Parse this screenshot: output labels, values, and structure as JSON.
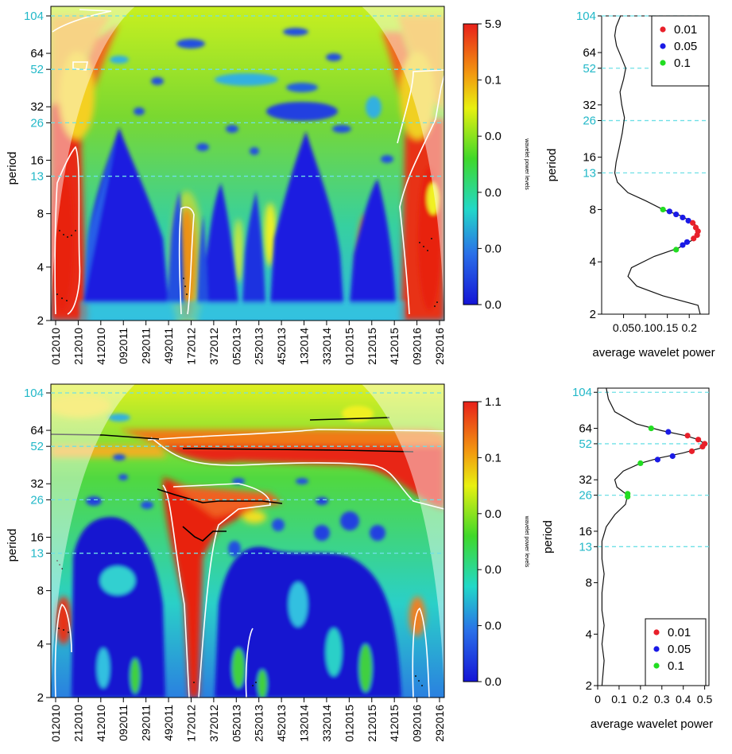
{
  "chart_data": [
    {
      "type": "heatmap",
      "panel": "top-spectrum",
      "ylabel": "period",
      "y_ticks": [
        "2",
        "4",
        "8",
        "16",
        "32",
        "64"
      ],
      "y_ticks_highlight": [
        "13",
        "26",
        "52",
        "104"
      ],
      "x_ticks": [
        "012010",
        "212010",
        "412010",
        "092011",
        "292011",
        "492011",
        "172012",
        "372012",
        "052013",
        "252013",
        "452013",
        "132014",
        "332014",
        "012015",
        "212015",
        "412015",
        "092016",
        "292016"
      ],
      "colorbar": {
        "title": "wavelet power levels",
        "labels": [
          "5.9",
          "0.1",
          "0.0",
          "0.0",
          "0.0",
          "0.0"
        ]
      }
    },
    {
      "type": "line",
      "panel": "top-average",
      "xlabel": "average wavelet power",
      "ylabel": "period",
      "x_ticks": [
        "0.05",
        "0.10",
        "0.15",
        "0.2"
      ],
      "y_ticks": [
        "2",
        "4",
        "8",
        "16",
        "32",
        "64"
      ],
      "y_ticks_highlight": [
        "13",
        "26",
        "52",
        "104"
      ],
      "legend": {
        "position": "top-right",
        "entries": [
          {
            "label": "0.01",
            "color": "#e8202a"
          },
          {
            "label": "0.05",
            "color": "#1a1ae6"
          },
          {
            "label": "0.1",
            "color": "#22dd22"
          }
        ]
      },
      "curve": [
        [
          0.043,
          104
        ],
        [
          0.033,
          90
        ],
        [
          0.03,
          80
        ],
        [
          0.034,
          70
        ],
        [
          0.045,
          60
        ],
        [
          0.055,
          52
        ],
        [
          0.05,
          45
        ],
        [
          0.042,
          38
        ],
        [
          0.046,
          32
        ],
        [
          0.052,
          27
        ],
        [
          0.047,
          22
        ],
        [
          0.04,
          18
        ],
        [
          0.033,
          15
        ],
        [
          0.03,
          13
        ],
        [
          0.036,
          11.5
        ],
        [
          0.06,
          10
        ],
        [
          0.1,
          9
        ],
        [
          0.14,
          8
        ],
        [
          0.185,
          7.3
        ],
        [
          0.215,
          6.5
        ],
        [
          0.22,
          5.9
        ],
        [
          0.205,
          5.3
        ],
        [
          0.175,
          4.8
        ],
        [
          0.12,
          4.3
        ],
        [
          0.068,
          3.7
        ],
        [
          0.06,
          3.3
        ],
        [
          0.08,
          2.9
        ],
        [
          0.14,
          2.55
        ],
        [
          0.22,
          2.25
        ],
        [
          0.225,
          2.0
        ]
      ],
      "significant_points": [
        {
          "level": "0.1",
          "color": "#22dd22",
          "points": [
            [
              0.14,
              8.0
            ],
            [
              0.17,
              4.7
            ]
          ]
        },
        {
          "level": "0.05",
          "color": "#1a1ae6",
          "points": [
            [
              0.155,
              7.8
            ],
            [
              0.17,
              7.5
            ],
            [
              0.185,
              7.2
            ],
            [
              0.198,
              6.9
            ],
            [
              0.185,
              5.0
            ],
            [
              0.195,
              5.2
            ]
          ]
        },
        {
          "level": "0.01",
          "color": "#e8202a",
          "points": [
            [
              0.208,
              6.7
            ],
            [
              0.215,
              6.3
            ],
            [
              0.22,
              6.0
            ],
            [
              0.218,
              5.7
            ],
            [
              0.21,
              5.45
            ]
          ]
        }
      ]
    },
    {
      "type": "heatmap",
      "panel": "bottom-spectrum",
      "ylabel": "period",
      "y_ticks": [
        "2",
        "4",
        "8",
        "16",
        "32",
        "64"
      ],
      "y_ticks_highlight": [
        "13",
        "26",
        "52",
        "104"
      ],
      "x_ticks": [
        "012010",
        "212010",
        "412010",
        "092011",
        "292011",
        "492011",
        "172012",
        "372012",
        "052013",
        "252013",
        "452013",
        "132014",
        "332014",
        "012015",
        "212015",
        "412015",
        "092016",
        "292016"
      ],
      "colorbar": {
        "title": "wavelet power levels",
        "labels": [
          "1.1",
          "0.1",
          "0.0",
          "0.0",
          "0.0",
          "0.0"
        ]
      }
    },
    {
      "type": "line",
      "panel": "bottom-average",
      "xlabel": "average wavelet power",
      "ylabel": "period",
      "x_ticks": [
        "0",
        "0.1",
        "0.2",
        "0.3",
        "0.4",
        "0.5"
      ],
      "y_ticks": [
        "2",
        "4",
        "8",
        "16",
        "32",
        "64"
      ],
      "y_ticks_highlight": [
        "13",
        "26",
        "52",
        "104"
      ],
      "legend": {
        "position": "bottom-right",
        "entries": [
          {
            "label": "0.01",
            "color": "#e8202a"
          },
          {
            "label": "0.05",
            "color": "#1a1ae6"
          },
          {
            "label": "0.1",
            "color": "#22dd22"
          }
        ]
      },
      "curve": [
        [
          0.04,
          110
        ],
        [
          0.05,
          95
        ],
        [
          0.08,
          80
        ],
        [
          0.18,
          68
        ],
        [
          0.3,
          62
        ],
        [
          0.41,
          58
        ],
        [
          0.47,
          55
        ],
        [
          0.5,
          52
        ],
        [
          0.48,
          49
        ],
        [
          0.4,
          46
        ],
        [
          0.29,
          43
        ],
        [
          0.2,
          40
        ],
        [
          0.12,
          36
        ],
        [
          0.08,
          32
        ],
        [
          0.09,
          29
        ],
        [
          0.14,
          26
        ],
        [
          0.13,
          23
        ],
        [
          0.08,
          20
        ],
        [
          0.04,
          17
        ],
        [
          0.02,
          14
        ],
        [
          0.02,
          11
        ],
        [
          0.03,
          9
        ],
        [
          0.02,
          7
        ],
        [
          0.02,
          5.5
        ],
        [
          0.03,
          4.5
        ],
        [
          0.02,
          3.5
        ],
        [
          0.03,
          2.8
        ],
        [
          0.02,
          2.0
        ]
      ],
      "significant_points": [
        {
          "level": "0.1",
          "color": "#22dd22",
          "points": [
            [
              0.25,
              64
            ],
            [
              0.2,
              40
            ],
            [
              0.14,
              26.5
            ],
            [
              0.14,
              25.5
            ]
          ]
        },
        {
          "level": "0.05",
          "color": "#1a1ae6",
          "points": [
            [
              0.33,
              61
            ],
            [
              0.28,
              42
            ],
            [
              0.35,
              44
            ]
          ]
        },
        {
          "level": "0.01",
          "color": "#e8202a",
          "points": [
            [
              0.42,
              58
            ],
            [
              0.47,
              55
            ],
            [
              0.5,
              52
            ],
            [
              0.49,
              50
            ],
            [
              0.44,
              47
            ]
          ]
        }
      ]
    }
  ]
}
